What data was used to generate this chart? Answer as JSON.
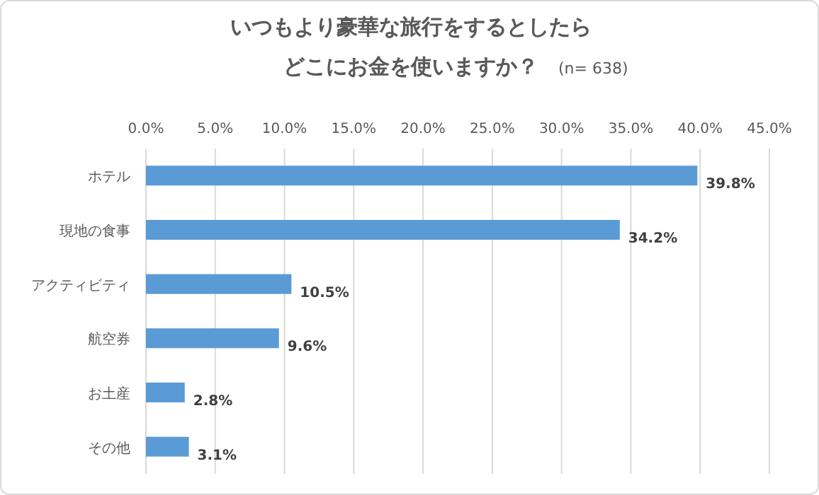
{
  "chart_data": {
    "type": "bar",
    "orientation": "horizontal",
    "title": "いつもより豪華な旅行をするとしたらどこにお金を使いますか？",
    "subtitle": "(n= 638)",
    "categories": [
      "ホテル",
      "現地の食事",
      "アクティビティ",
      "航空券",
      "お土産",
      "その他"
    ],
    "values": [
      39.8,
      34.2,
      10.5,
      9.6,
      2.8,
      3.1
    ],
    "value_labels": [
      "39.8%",
      "34.2%",
      "10.5%",
      "9.6%",
      "2.8%",
      "3.1%"
    ],
    "color": "#5b9bd5",
    "xlim": [
      0,
      45
    ],
    "xticks": [
      {
        "value": 0,
        "label": "0.0%"
      },
      {
        "value": 5,
        "label": "5.0%"
      },
      {
        "value": 10,
        "label": "10.0%"
      },
      {
        "value": 15,
        "label": "15.0%"
      },
      {
        "value": 20,
        "label": "20.0%"
      },
      {
        "value": 25,
        "label": "25.0%"
      },
      {
        "value": 30,
        "label": "30.0%"
      },
      {
        "value": 35,
        "label": "35.0%"
      },
      {
        "value": 40,
        "label": "40.0%"
      },
      {
        "value": 45,
        "label": "45.0%"
      }
    ],
    "grid": "x"
  }
}
